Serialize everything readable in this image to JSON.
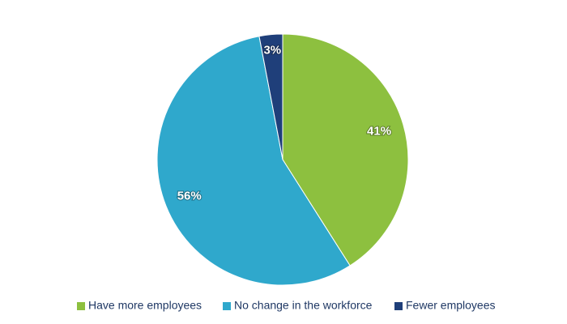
{
  "chart_data": {
    "type": "pie",
    "categories": [
      "Have more employees",
      "No change in the workforce",
      "Fewer employees"
    ],
    "values": [
      41,
      56,
      3
    ],
    "value_labels": [
      "41%",
      "56%",
      "3%"
    ],
    "colors": [
      "#8dc03f",
      "#2fa8cc",
      "#1f3f7a"
    ],
    "legend": "bottom"
  }
}
